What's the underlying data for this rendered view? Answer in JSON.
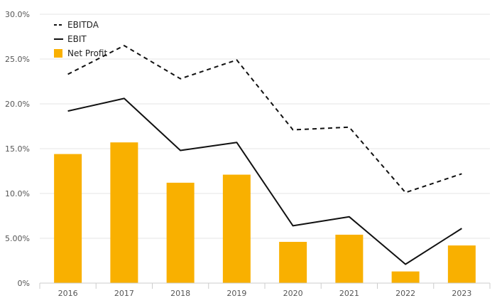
{
  "chart_data": {
    "type": "bar",
    "title": "",
    "xlabel": "",
    "ylabel": "",
    "categories": [
      "2016",
      "2017",
      "2018",
      "2019",
      "2020",
      "2021",
      "2022",
      "2023"
    ],
    "ylim": [
      0,
      30
    ],
    "y_ticks": [
      {
        "value": 0,
        "label": "0%"
      },
      {
        "value": 5,
        "label": "5.00%"
      },
      {
        "value": 10,
        "label": "10.0%"
      },
      {
        "value": 15,
        "label": "15.0%"
      },
      {
        "value": 20,
        "label": "20.0%"
      },
      {
        "value": 25,
        "label": "25.0%"
      },
      {
        "value": 30,
        "label": "30.0%"
      }
    ],
    "grid": true,
    "legend_position": "top-left",
    "series": [
      {
        "name": "EBITDA",
        "type": "line",
        "style": "dashed",
        "color": "#111111",
        "values": [
          23.3,
          26.5,
          22.8,
          24.9,
          17.1,
          17.4,
          10.1,
          12.2
        ]
      },
      {
        "name": "EBIT",
        "type": "line",
        "style": "solid",
        "color": "#111111",
        "values": [
          19.2,
          20.6,
          14.8,
          15.7,
          6.4,
          7.4,
          2.1,
          6.1
        ]
      },
      {
        "name": "Net Profit",
        "type": "bar",
        "color": "#F9B000",
        "values": [
          14.4,
          15.7,
          11.2,
          12.1,
          4.6,
          5.4,
          1.3,
          4.2
        ]
      }
    ]
  }
}
